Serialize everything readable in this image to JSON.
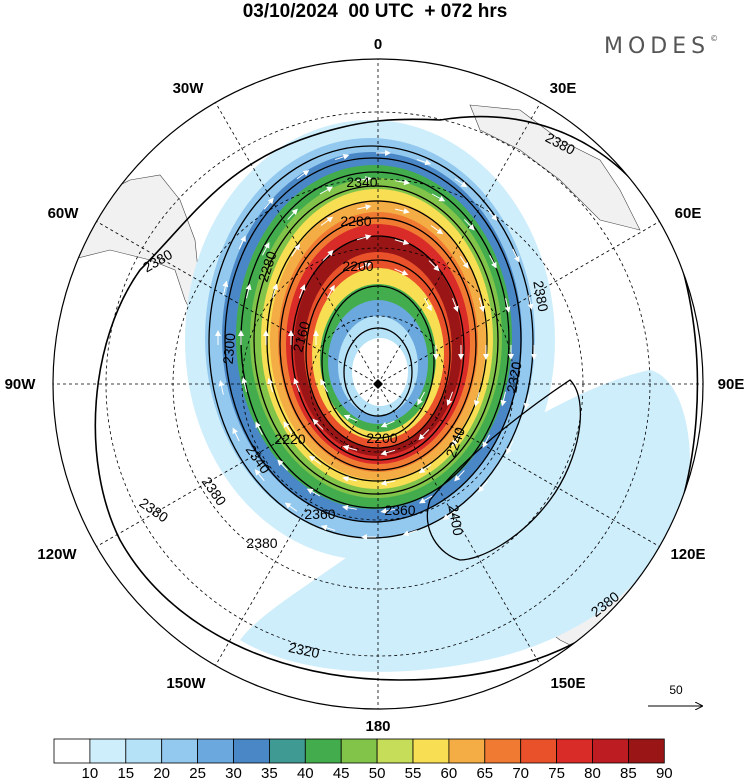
{
  "header": {
    "title": "03/10/2024  00 UTC  + 072 hrs",
    "brand": "MODES"
  },
  "map": {
    "projection": "south-polar-stereographic",
    "lon_labels": [
      {
        "text": "0",
        "lon": 0
      },
      {
        "text": "30E",
        "lon": 30
      },
      {
        "text": "60E",
        "lon": 60
      },
      {
        "text": "90E",
        "lon": 90
      },
      {
        "text": "120E",
        "lon": 120
      },
      {
        "text": "150E",
        "lon": 150
      },
      {
        "text": "180",
        "lon": 180
      },
      {
        "text": "150W",
        "lon": -150
      },
      {
        "text": "120W",
        "lon": -120
      },
      {
        "text": "90W",
        "lon": -90
      },
      {
        "text": "60W",
        "lon": -60
      },
      {
        "text": "30W",
        "lon": -30
      }
    ],
    "contour_labels": [
      "2340",
      "2280",
      "2200",
      "2160",
      "2320",
      "2300",
      "2280",
      "2380",
      "2220",
      "2200",
      "2240",
      "2340",
      "2380",
      "2360",
      "2360",
      "2400",
      "2380",
      "2380",
      "2380",
      "2380",
      "2380",
      "2320"
    ],
    "vector_reference": {
      "value": "50"
    }
  },
  "colorbar": {
    "levels": [
      "10",
      "15",
      "20",
      "25",
      "30",
      "35",
      "40",
      "45",
      "50",
      "55",
      "60",
      "65",
      "70",
      "75",
      "80",
      "85",
      "90"
    ],
    "colors": [
      "#ffffff",
      "#cfeefc",
      "#b6e2f8",
      "#93c9ef",
      "#6aa8dd",
      "#4a87c6",
      "#3f9a94",
      "#43ad4e",
      "#82c44a",
      "#c6dd5a",
      "#f7de52",
      "#f4ad44",
      "#f07a32",
      "#e9512b",
      "#d92b27",
      "#bd1c22",
      "#9a1616"
    ]
  },
  "colors": {
    "land": "#f1f1f1",
    "contour": "#000000",
    "vector": "#ffffff"
  }
}
